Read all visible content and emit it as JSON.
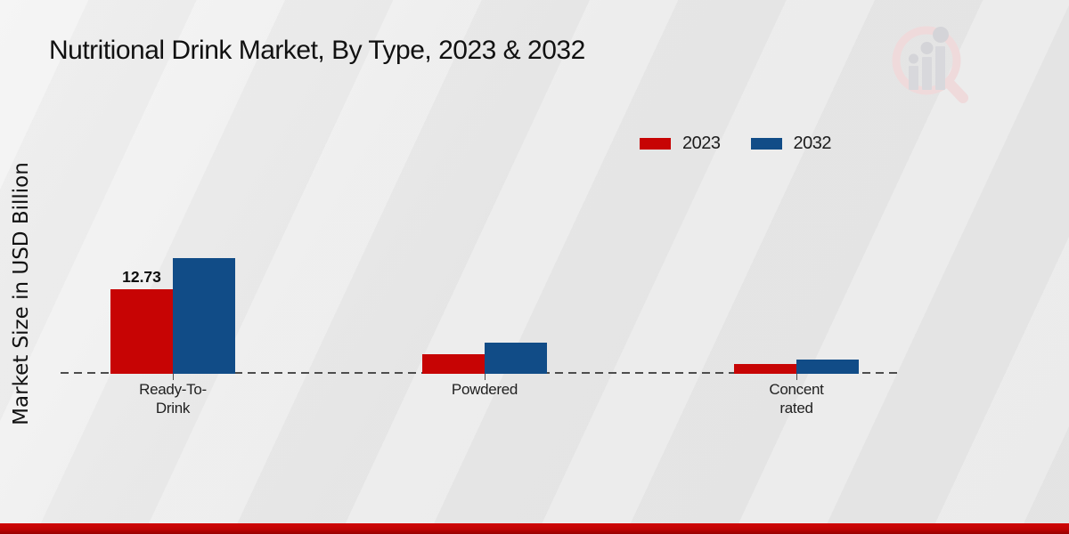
{
  "header": {
    "title": "Nutritional Drink Market, By Type, 2023 & 2032"
  },
  "axis": {
    "y_label": "Market Size in USD Billion"
  },
  "legend": {
    "position": "top-right",
    "items": [
      {
        "label": "2023",
        "color": "#c70404"
      },
      {
        "label": "2032",
        "color": "#114c87"
      }
    ]
  },
  "chart_data": {
    "type": "bar",
    "title": "Nutritional Drink Market, By Type, 2023 & 2032",
    "xlabel": "",
    "ylabel": "Market Size in USD Billion",
    "categories": [
      "Ready-To-Drink",
      "Powdered",
      "Concentrated"
    ],
    "category_label_lines": [
      [
        "Ready-To-",
        "Drink"
      ],
      [
        "Powdered"
      ],
      [
        "Concent",
        "rated"
      ]
    ],
    "series": [
      {
        "name": "2023",
        "color": "#c70404",
        "values": [
          12.73,
          2.95,
          1.45
        ]
      },
      {
        "name": "2032",
        "color": "#114c87",
        "values": [
          17.4,
          4.7,
          2.15
        ]
      }
    ],
    "data_labels": [
      {
        "series": "2023",
        "category": "Ready-To-Drink",
        "text": "12.73"
      }
    ],
    "ylim": [
      0,
      18
    ],
    "grid": false,
    "baseline_style": "dashed",
    "legend_position": "top-right",
    "note": "only the 2023 Ready-To-Drink bar carries a printed value; other values estimated from bar heights"
  },
  "watermark": {
    "name": "magnifier-bar-chart-logo"
  },
  "footer": {
    "accent_bar_color": "#c00000"
  }
}
